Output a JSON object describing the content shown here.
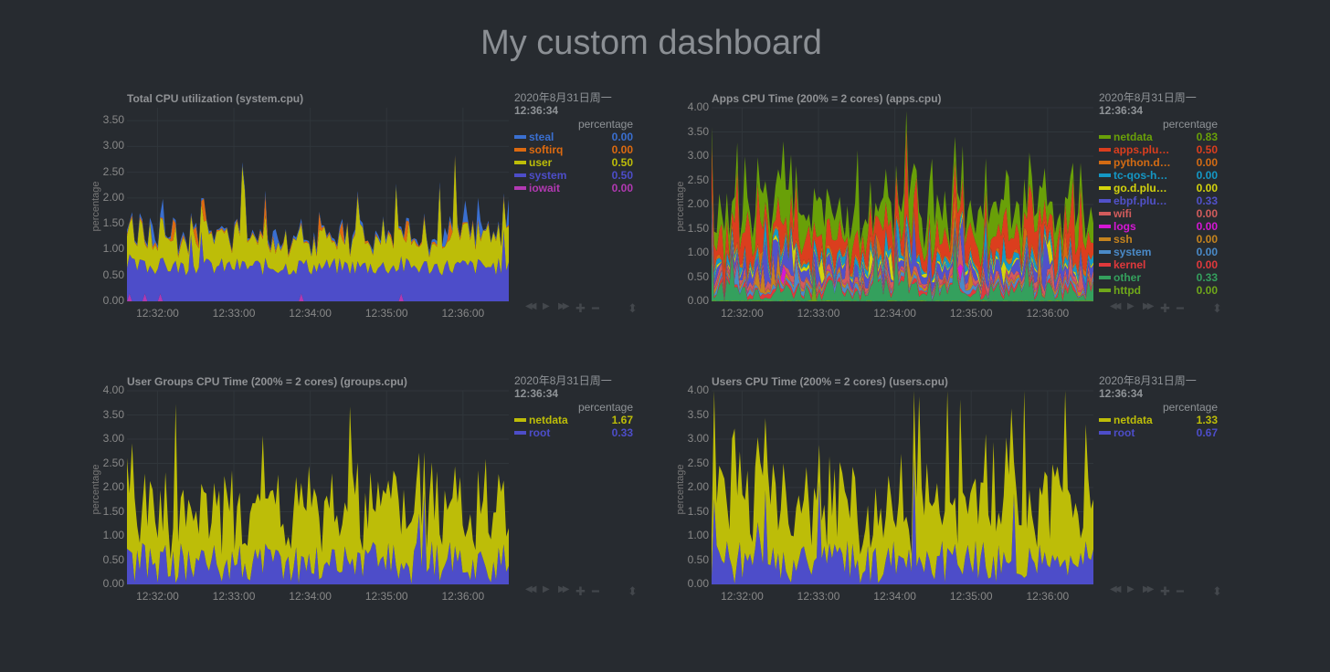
{
  "page_title": "My custom dashboard",
  "toolbox_icons": [
    "rewind-icon",
    "play-icon",
    "fast-forward-icon",
    "zoom-in-icon",
    "zoom-out-icon",
    "resize-handle-icon"
  ],
  "chart_data": [
    {
      "id": "system-cpu",
      "type": "area",
      "stacked": true,
      "title": "Total CPU utilization (system.cpu)",
      "ylabel": "percentage",
      "xlabel": "",
      "ylim": [
        0,
        3.75
      ],
      "yticks": [
        "0.00",
        "0.50",
        "1.00",
        "1.50",
        "2.00",
        "2.50",
        "3.00",
        "3.50"
      ],
      "ytick_values": [
        0,
        0.5,
        1,
        1.5,
        2,
        2.5,
        3,
        3.5
      ],
      "xticks": [
        "12:32:00",
        "12:33:00",
        "12:34:00",
        "12:35:00",
        "12:36:00"
      ],
      "xtick_positions": [
        0.08,
        0.28,
        0.48,
        0.68,
        0.88
      ],
      "grid": true,
      "legend": {
        "position": "right",
        "date": "2020年8月31日周一",
        "time": "12:36:34",
        "units": "percentage"
      },
      "series": [
        {
          "name": "steal",
          "value": "0.00",
          "color": "#3a6fd0",
          "seed": 11,
          "base": 0.0,
          "amp": 0.08,
          "spike": 0.04
        },
        {
          "name": "softirq",
          "value": "0.00",
          "color": "#dd6a10",
          "seed": 12,
          "base": 0.0,
          "amp": 0.06,
          "spike": 0.05
        },
        {
          "name": "user",
          "value": "0.50",
          "color": "#bdbd08",
          "seed": 13,
          "base": 0.3,
          "amp": 0.55,
          "spike": 0.08
        },
        {
          "name": "system",
          "value": "0.50",
          "color": "#4d4dc9",
          "seed": 14,
          "base": 0.5,
          "amp": 0.35,
          "spike": 0.03
        },
        {
          "name": "iowait",
          "value": "0.00",
          "color": "#b239b2",
          "seed": 15,
          "base": 0.0,
          "amp": 0.0,
          "spike": 0.03
        }
      ]
    },
    {
      "id": "apps-cpu",
      "type": "area",
      "stacked": true,
      "title": "Apps CPU Time (200% = 2 cores) (apps.cpu)",
      "ylabel": "percentage",
      "xlabel": "",
      "ylim": [
        0,
        4.0
      ],
      "yticks": [
        "0.00",
        "0.50",
        "1.00",
        "1.50",
        "2.00",
        "2.50",
        "3.00",
        "3.50",
        "4.00"
      ],
      "ytick_values": [
        0,
        0.5,
        1,
        1.5,
        2,
        2.5,
        3,
        3.5,
        4
      ],
      "xticks": [
        "12:32:00",
        "12:33:00",
        "12:34:00",
        "12:35:00",
        "12:36:00"
      ],
      "xtick_positions": [
        0.08,
        0.28,
        0.48,
        0.68,
        0.88
      ],
      "grid": true,
      "legend": {
        "position": "right",
        "date": "2020年8月31日周一",
        "time": "12:36:34",
        "units": "percentage"
      },
      "series": [
        {
          "name": "netdata",
          "value": "0.83",
          "color": "#69a008",
          "seed": 21,
          "base": 0.1,
          "amp": 0.7,
          "spike": 0.08
        },
        {
          "name": "apps.plu…",
          "value": "0.50",
          "color": "#db3e1e",
          "seed": 22,
          "base": 0.1,
          "amp": 0.6,
          "spike": 0.08
        },
        {
          "name": "python.d…",
          "value": "0.00",
          "color": "#d36b13",
          "seed": 23,
          "base": 0.0,
          "amp": 0.12,
          "spike": 0.05
        },
        {
          "name": "tc-qos-h…",
          "value": "0.00",
          "color": "#1498c6",
          "seed": 24,
          "base": 0.0,
          "amp": 0.2,
          "spike": 0.05
        },
        {
          "name": "go.d.plu…",
          "value": "0.00",
          "color": "#d4d40c",
          "seed": 25,
          "base": 0.0,
          "amp": 0.1,
          "spike": 0.04
        },
        {
          "name": "ebpf.plu…",
          "value": "0.33",
          "color": "#5151c9",
          "seed": 26,
          "base": 0.0,
          "amp": 0.3,
          "spike": 0.05
        },
        {
          "name": "wifi",
          "value": "0.00",
          "color": "#d25c5c",
          "seed": 27,
          "base": 0.0,
          "amp": 0.15,
          "spike": 0.04
        },
        {
          "name": "logs",
          "value": "0.00",
          "color": "#d517d5",
          "seed": 28,
          "base": 0.0,
          "amp": 0.03,
          "spike": 0.02
        },
        {
          "name": "ssh",
          "value": "0.00",
          "color": "#c6841e",
          "seed": 29,
          "base": 0.0,
          "amp": 0.1,
          "spike": 0.03
        },
        {
          "name": "system",
          "value": "0.00",
          "color": "#4a8ac8",
          "seed": 30,
          "base": 0.0,
          "amp": 0.12,
          "spike": 0.03
        },
        {
          "name": "kernel",
          "value": "0.00",
          "color": "#e0393c",
          "seed": 31,
          "base": 0.0,
          "amp": 0.12,
          "spike": 0.03
        },
        {
          "name": "other",
          "value": "0.33",
          "color": "#34a05d",
          "seed": 32,
          "base": 0.0,
          "amp": 0.45,
          "spike": 0.05
        },
        {
          "name": "httpd",
          "value": "0.00",
          "color": "#6fa71a",
          "seed": 33,
          "base": 0.0,
          "amp": 0.02,
          "spike": 0.02
        }
      ]
    },
    {
      "id": "groups-cpu",
      "type": "area",
      "stacked": true,
      "title": "User Groups CPU Time (200% = 2 cores) (groups.cpu)",
      "ylabel": "percentage",
      "xlabel": "",
      "ylim": [
        0,
        4.0
      ],
      "yticks": [
        "0.00",
        "0.50",
        "1.00",
        "1.50",
        "2.00",
        "2.50",
        "3.00",
        "3.50",
        "4.00"
      ],
      "ytick_values": [
        0,
        0.5,
        1,
        1.5,
        2,
        2.5,
        3,
        3.5,
        4
      ],
      "xticks": [
        "12:32:00",
        "12:33:00",
        "12:34:00",
        "12:35:00",
        "12:36:00"
      ],
      "xtick_positions": [
        0.08,
        0.28,
        0.48,
        0.68,
        0.88
      ],
      "grid": true,
      "legend": {
        "position": "right",
        "date": "2020年8月31日周一",
        "time": "12:36:34",
        "units": "percentage"
      },
      "series": [
        {
          "name": "netdata",
          "value": "1.67",
          "color": "#bdbd08",
          "seed": 41,
          "base": 0.3,
          "amp": 1.6,
          "spike": 0.08
        },
        {
          "name": "root",
          "value": "0.33",
          "color": "#4d4dc9",
          "seed": 42,
          "base": 0.0,
          "amp": 0.9,
          "spike": 0.05
        }
      ]
    },
    {
      "id": "users-cpu",
      "type": "area",
      "stacked": true,
      "title": "Users CPU Time (200% = 2 cores) (users.cpu)",
      "ylabel": "percentage",
      "xlabel": "",
      "ylim": [
        0,
        4.0
      ],
      "yticks": [
        "0.00",
        "0.50",
        "1.00",
        "1.50",
        "2.00",
        "2.50",
        "3.00",
        "3.50",
        "4.00"
      ],
      "ytick_values": [
        0,
        0.5,
        1,
        1.5,
        2,
        2.5,
        3,
        3.5,
        4
      ],
      "xticks": [
        "12:32:00",
        "12:33:00",
        "12:34:00",
        "12:35:00",
        "12:36:00"
      ],
      "xtick_positions": [
        0.08,
        0.28,
        0.48,
        0.68,
        0.88
      ],
      "grid": true,
      "legend": {
        "position": "right",
        "date": "2020年8月31日周一",
        "time": "12:36:34",
        "units": "percentage"
      },
      "series": [
        {
          "name": "netdata",
          "value": "1.33",
          "color": "#bdbd08",
          "seed": 51,
          "base": 0.3,
          "amp": 1.6,
          "spike": 0.08
        },
        {
          "name": "root",
          "value": "0.67",
          "color": "#4d4dc9",
          "seed": 52,
          "base": 0.0,
          "amp": 0.9,
          "spike": 0.05
        }
      ]
    }
  ]
}
